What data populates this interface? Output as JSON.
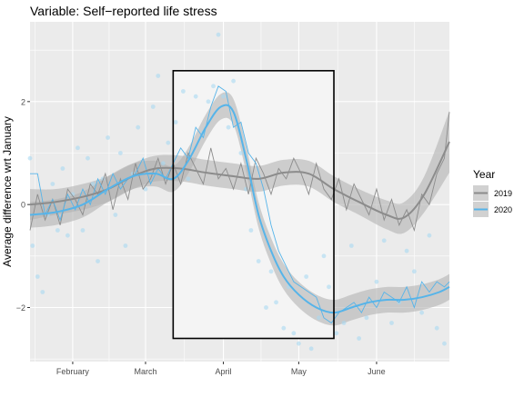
{
  "chart_data": {
    "type": "line",
    "title": "Variable: Self−reported life stress",
    "xlabel": "",
    "ylabel": "Average difference wrt January",
    "xlim": [
      "2020-01-15",
      "2020-06-30"
    ],
    "ylim": [
      -3.05,
      3.55
    ],
    "x_ticks": [
      {
        "date": "2020-02-01",
        "label": "February"
      },
      {
        "date": "2020-03-01",
        "label": "March"
      },
      {
        "date": "2020-04-01",
        "label": "April"
      },
      {
        "date": "2020-05-01",
        "label": "May"
      },
      {
        "date": "2020-06-01",
        "label": "June"
      }
    ],
    "y_ticks": [
      {
        "value": 2,
        "label": "2"
      },
      {
        "value": 0,
        "label": "0"
      },
      {
        "value": -2,
        "label": "−2"
      }
    ],
    "grid": true,
    "legend": {
      "title": "Year",
      "position": "right"
    },
    "colors": {
      "panel": "#ebebeb",
      "grid": "#ffffff",
      "ribbon": "#b3b3b3",
      "highlight_fill": "#f4f4f4",
      "points_2020": "#a9d8f2"
    },
    "highlight_region": {
      "x_start": "2020-03-12",
      "x_end": "2020-05-15",
      "y_min": -2.6,
      "y_max": 2.6
    },
    "series": [
      {
        "name": "2019",
        "color": "#8c8c8c",
        "smooth": {
          "x": [
            "2020-01-15",
            "2020-01-25",
            "2020-02-05",
            "2020-02-15",
            "2020-02-25",
            "2020-03-05",
            "2020-03-15",
            "2020-03-25",
            "2020-04-05",
            "2020-04-15",
            "2020-04-25",
            "2020-05-05",
            "2020-05-15",
            "2020-05-25",
            "2020-06-05",
            "2020-06-12",
            "2020-06-20",
            "2020-06-30"
          ],
          "y": [
            0.0,
            0.05,
            0.15,
            0.3,
            0.55,
            0.7,
            0.7,
            0.62,
            0.55,
            0.5,
            0.62,
            0.6,
            0.3,
            0.05,
            -0.2,
            -0.25,
            0.2,
            1.22
          ],
          "band": [
            0.3,
            0.25,
            0.25,
            0.25,
            0.25,
            0.25,
            0.25,
            0.25,
            0.25,
            0.25,
            0.25,
            0.25,
            0.25,
            0.25,
            0.28,
            0.3,
            0.35,
            0.6
          ]
        },
        "raw": {
          "x": [
            "2020-01-15",
            "2020-01-18",
            "2020-01-21",
            "2020-01-24",
            "2020-01-27",
            "2020-01-30",
            "2020-02-02",
            "2020-02-05",
            "2020-02-08",
            "2020-02-11",
            "2020-02-14",
            "2020-02-17",
            "2020-02-20",
            "2020-02-23",
            "2020-02-26",
            "2020-02-29",
            "2020-03-03",
            "2020-03-06",
            "2020-03-09",
            "2020-03-12",
            "2020-03-15",
            "2020-03-18",
            "2020-03-21",
            "2020-03-24",
            "2020-03-27",
            "2020-03-30",
            "2020-04-02",
            "2020-04-05",
            "2020-04-08",
            "2020-04-11",
            "2020-04-14",
            "2020-04-17",
            "2020-04-20",
            "2020-04-23",
            "2020-04-26",
            "2020-04-29",
            "2020-05-02",
            "2020-05-05",
            "2020-05-08",
            "2020-05-11",
            "2020-05-14",
            "2020-05-17",
            "2020-05-20",
            "2020-05-23",
            "2020-05-26",
            "2020-05-29",
            "2020-06-01",
            "2020-06-04",
            "2020-06-07",
            "2020-06-10",
            "2020-06-13",
            "2020-06-16",
            "2020-06-19",
            "2020-06-22",
            "2020-06-25",
            "2020-06-28",
            "2020-06-30"
          ],
          "y": [
            -0.5,
            0.2,
            -0.3,
            0.1,
            -0.4,
            0.3,
            0.1,
            -0.2,
            0.4,
            0.2,
            0.6,
            -0.1,
            0.5,
            0.1,
            0.8,
            0.3,
            0.5,
            0.9,
            0.4,
            0.8,
            0.4,
            1.0,
            0.7,
            0.4,
            1.1,
            0.5,
            0.7,
            0.3,
            0.8,
            0.2,
            0.9,
            0.6,
            0.2,
            0.7,
            0.5,
            0.9,
            0.6,
            0.2,
            0.8,
            0.3,
            0.1,
            0.5,
            -0.1,
            0.4,
            0.1,
            -0.2,
            0.3,
            -0.3,
            0.1,
            -0.4,
            -0.1,
            -0.5,
            0.2,
            0.0,
            0.6,
            0.9,
            1.8
          ]
        }
      },
      {
        "name": "2020",
        "color": "#56b4e9",
        "smooth": {
          "x": [
            "2020-01-15",
            "2020-01-25",
            "2020-02-05",
            "2020-02-15",
            "2020-02-25",
            "2020-03-05",
            "2020-03-12",
            "2020-03-18",
            "2020-03-25",
            "2020-03-31",
            "2020-04-05",
            "2020-04-10",
            "2020-04-15",
            "2020-04-20",
            "2020-04-25",
            "2020-05-01",
            "2020-05-08",
            "2020-05-15",
            "2020-05-22",
            "2020-05-29",
            "2020-06-05",
            "2020-06-12",
            "2020-06-19",
            "2020-06-26",
            "2020-06-30"
          ],
          "y": [
            -0.2,
            -0.15,
            0.0,
            0.3,
            0.55,
            0.6,
            0.5,
            0.85,
            1.5,
            1.9,
            1.8,
            0.9,
            -0.2,
            -0.9,
            -1.4,
            -1.75,
            -2.0,
            -2.1,
            -2.0,
            -1.9,
            -1.85,
            -1.85,
            -1.8,
            -1.7,
            -1.6
          ]
        },
        "raw": {
          "x": [
            "2020-01-15",
            "2020-01-18",
            "2020-01-21",
            "2020-01-24",
            "2020-01-27",
            "2020-01-30",
            "2020-02-02",
            "2020-02-05",
            "2020-02-08",
            "2020-02-11",
            "2020-02-14",
            "2020-02-17",
            "2020-02-20",
            "2020-02-23",
            "2020-02-26",
            "2020-02-29",
            "2020-03-03",
            "2020-03-06",
            "2020-03-09",
            "2020-03-12",
            "2020-03-15",
            "2020-03-18",
            "2020-03-21",
            "2020-03-24",
            "2020-03-27",
            "2020-03-30",
            "2020-04-02",
            "2020-04-05",
            "2020-04-08",
            "2020-04-11",
            "2020-04-14",
            "2020-04-17",
            "2020-04-20",
            "2020-04-23",
            "2020-04-26",
            "2020-04-29",
            "2020-05-02",
            "2020-05-05",
            "2020-05-08",
            "2020-05-11",
            "2020-05-14",
            "2020-05-17",
            "2020-05-20",
            "2020-05-23",
            "2020-05-26",
            "2020-05-29",
            "2020-06-01",
            "2020-06-04",
            "2020-06-07",
            "2020-06-10",
            "2020-06-13",
            "2020-06-16",
            "2020-06-19",
            "2020-06-22",
            "2020-06-25",
            "2020-06-28",
            "2020-06-30"
          ],
          "y": [
            0.6,
            0.6,
            -0.2,
            0.1,
            -0.3,
            0.2,
            -0.1,
            0.3,
            0.0,
            0.5,
            0.2,
            0.6,
            0.3,
            0.5,
            0.6,
            0.9,
            0.4,
            0.7,
            0.5,
            0.8,
            1.1,
            0.9,
            1.5,
            1.3,
            1.9,
            2.3,
            2.2,
            1.5,
            1.6,
            1.0,
            0.8,
            0.3,
            -0.4,
            -0.9,
            -1.2,
            -1.5,
            -1.6,
            -1.7,
            -1.8,
            -2.2,
            -2.3,
            -2.1,
            -2.0,
            -1.9,
            -2.1,
            -1.8,
            -2.0,
            -1.7,
            -1.8,
            -1.9,
            -1.6,
            -2.0,
            -1.5,
            -1.7,
            -1.5,
            -1.6,
            -1.5
          ]
        },
        "points": {
          "x": [
            "2020-01-15",
            "2020-01-16",
            "2020-01-18",
            "2020-01-20",
            "2020-01-22",
            "2020-01-24",
            "2020-01-26",
            "2020-01-28",
            "2020-01-30",
            "2020-02-01",
            "2020-02-03",
            "2020-02-05",
            "2020-02-07",
            "2020-02-09",
            "2020-02-11",
            "2020-02-13",
            "2020-02-15",
            "2020-02-18",
            "2020-02-20",
            "2020-02-22",
            "2020-02-25",
            "2020-02-27",
            "2020-03-01",
            "2020-03-04",
            "2020-03-06",
            "2020-03-08",
            "2020-03-10",
            "2020-03-13",
            "2020-03-16",
            "2020-03-18",
            "2020-03-21",
            "2020-03-24",
            "2020-03-26",
            "2020-03-28",
            "2020-03-30",
            "2020-04-01",
            "2020-04-03",
            "2020-04-05",
            "2020-04-08",
            "2020-04-10",
            "2020-04-12",
            "2020-04-15",
            "2020-04-18",
            "2020-04-20",
            "2020-04-22",
            "2020-04-25",
            "2020-04-27",
            "2020-04-29",
            "2020-05-01",
            "2020-05-04",
            "2020-05-06",
            "2020-05-09",
            "2020-05-11",
            "2020-05-13",
            "2020-05-16",
            "2020-05-19",
            "2020-05-22",
            "2020-05-25",
            "2020-05-28",
            "2020-06-01",
            "2020-06-04",
            "2020-06-07",
            "2020-06-10",
            "2020-06-13",
            "2020-06-16",
            "2020-06-19",
            "2020-06-22",
            "2020-06-25",
            "2020-06-28"
          ],
          "y": [
            0.9,
            -0.8,
            -1.4,
            -1.7,
            -0.2,
            0.4,
            -0.5,
            0.7,
            -0.6,
            0.2,
            1.1,
            -0.5,
            0.9,
            0.4,
            -1.1,
            0.5,
            1.3,
            -0.2,
            1.0,
            -0.8,
            0.6,
            1.5,
            0.3,
            1.9,
            2.5,
            0.8,
            1.2,
            1.6,
            2.2,
            0.5,
            2.1,
            1.4,
            2.0,
            2.3,
            3.3,
            2.1,
            1.5,
            2.4,
            1.0,
            0.3,
            -0.5,
            -1.1,
            -2.0,
            -1.3,
            -1.9,
            -2.4,
            -1.6,
            -2.5,
            -2.7,
            -1.4,
            -2.8,
            -2.2,
            -1.0,
            -1.6,
            -2.5,
            -2.3,
            -0.8,
            -2.6,
            -2.2,
            -1.5,
            -0.7,
            -2.3,
            -1.9,
            -0.9,
            -1.3,
            -2.1,
            -0.6,
            -2.4,
            -2.7
          ]
        }
      }
    ]
  }
}
